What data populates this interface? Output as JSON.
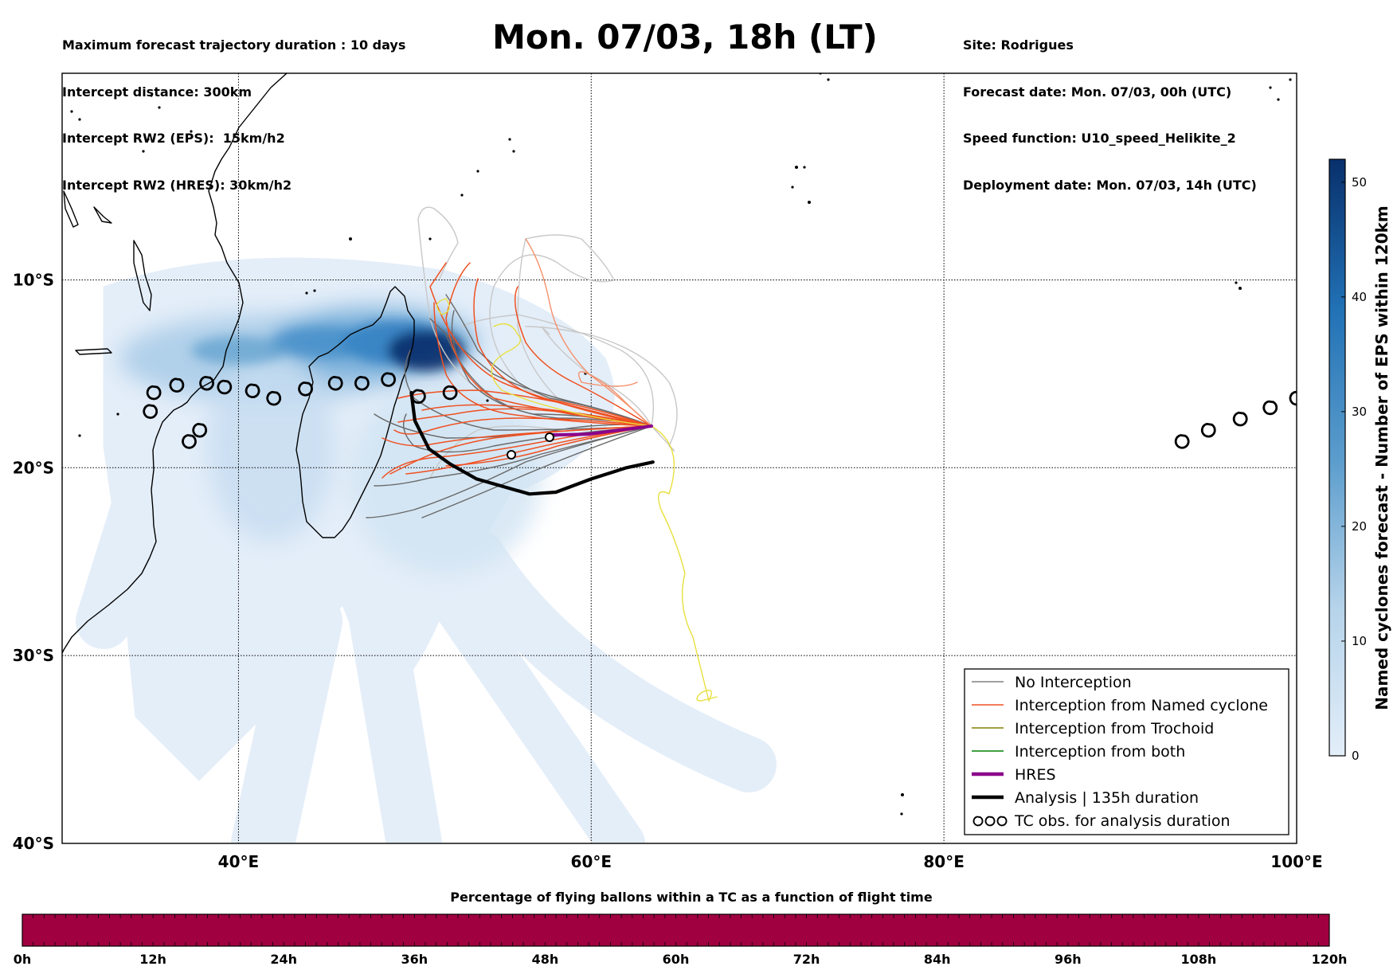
{
  "header": {
    "left_lines": [
      "Maximum forecast trajectory duration : 10 days",
      "Intercept distance: 300km",
      "Intercept RW2 (EPS):  15km/h2",
      "Intercept RW2 (HRES): 30km/h2"
    ],
    "title": "Mon. 07/03, 18h (LT)",
    "right_lines": [
      "Site: Rodrigues",
      "Forecast date: Mon. 07/03, 00h (UTC)",
      "Speed function: U10_speed_Helikite_2",
      "Deployment date: Mon. 07/03, 14h (UTC)"
    ]
  },
  "map": {
    "lon_range": [
      30,
      100
    ],
    "lat_range": [
      -40,
      1
    ],
    "lon_ticks": [
      {
        "value": 40,
        "label": "40°E"
      },
      {
        "value": 60,
        "label": "60°E"
      },
      {
        "value": 80,
        "label": "80°E"
      },
      {
        "value": 100,
        "label": "100°E"
      }
    ],
    "lat_ticks": [
      {
        "value": -10,
        "label": "10°S"
      },
      {
        "value": -20,
        "label": "20°S"
      },
      {
        "value": -30,
        "label": "30°S"
      },
      {
        "value": -40,
        "label": "40°S"
      }
    ],
    "gridlines": true
  },
  "colorbar": {
    "label": "Named cyclones forecast - Number of EPS within 120km",
    "min": 0,
    "max": 52,
    "ticks": [
      "0",
      "10",
      "20",
      "30",
      "40",
      "50"
    ],
    "colors": [
      "#e3eef9",
      "#08306b"
    ]
  },
  "legend": {
    "placement": "bottom-right",
    "entries": [
      {
        "label": "No Interception",
        "color": "#808080",
        "style": "thin"
      },
      {
        "label": "Interception from Named cyclone",
        "color": "#f05020",
        "style": "thin"
      },
      {
        "label": "Interception from Trochoid",
        "color": "#808000",
        "style": "thin"
      },
      {
        "label": "Interception from both",
        "color": "#008000",
        "style": "thin"
      },
      {
        "label": "HRES",
        "color": "#8b008b",
        "style": "thick"
      },
      {
        "label": "Analysis | 135h duration",
        "color": "#000000",
        "style": "thick"
      },
      {
        "label": "TC obs. for analysis duration",
        "color": "#000000",
        "style": "symbol"
      }
    ]
  },
  "analysis_track": [
    [
      63.5,
      -19.7
    ],
    [
      62,
      -20
    ],
    [
      60,
      -20.6
    ],
    [
      58,
      -21.3
    ],
    [
      56.5,
      -21.4
    ],
    [
      55,
      -21
    ],
    [
      53.5,
      -20.6
    ],
    [
      52,
      -19.8
    ],
    [
      50.8,
      -19
    ],
    [
      50,
      -17.5
    ],
    [
      49.8,
      -16
    ]
  ],
  "tc_obs": [
    [
      35,
      -17
    ],
    [
      35.2,
      -16
    ],
    [
      36.5,
      -15.6
    ],
    [
      38.2,
      -15.5
    ],
    [
      39.2,
      -15.7
    ],
    [
      40.8,
      -15.9
    ],
    [
      42,
      -16.3
    ],
    [
      43.8,
      -15.8
    ],
    [
      45.5,
      -15.5
    ],
    [
      47,
      -15.5
    ],
    [
      48.5,
      -15.3
    ],
    [
      50.2,
      -16.2
    ],
    [
      52,
      -16
    ],
    [
      37.2,
      -18.6
    ],
    [
      37.8,
      -18
    ],
    [
      93.5,
      -18.6
    ],
    [
      95,
      -18
    ],
    [
      96.8,
      -17.4
    ],
    [
      98.5,
      -16.8
    ],
    [
      100,
      -16.3
    ]
  ],
  "bottom_bar": {
    "title": "Percentage of flying ballons within a TC as a function of flight time",
    "color": "#a00040",
    "ticks": [
      "0h",
      "12h",
      "24h",
      "36h",
      "48h",
      "60h",
      "72h",
      "84h",
      "96h",
      "108h",
      "120h"
    ]
  }
}
